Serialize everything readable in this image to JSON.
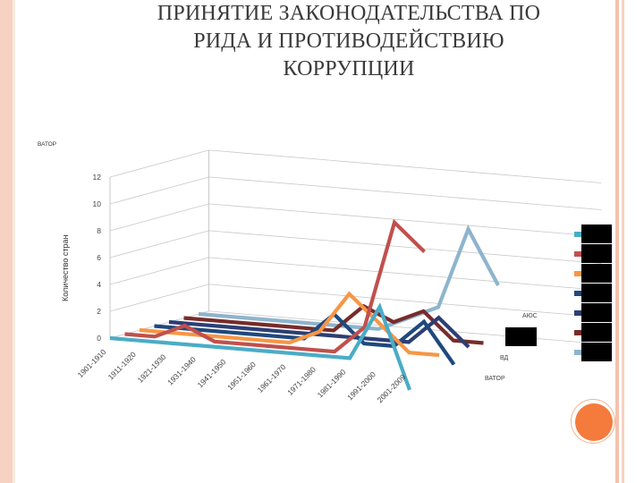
{
  "slide": {
    "title_lines": [
      "ПРИНЯТИЕ ЗАКОНОДАТЕЛЬСТВА ПО",
      "РИДА И ПРОТИВОДЕЙСТВИЮ",
      "КОРРУПЦИИ"
    ]
  },
  "chart_data": {
    "type": "line",
    "view": "3d",
    "categories": [
      "1901-1910",
      "1911-1920",
      "1921-1930",
      "1931-1940",
      "1941-1950",
      "1951-1960",
      "1961-1970",
      "1971-1980",
      "1981-1990",
      "1991-2000",
      "2001-2009"
    ],
    "ylabel": "Количество стран",
    "corner_label": "ВАТОР",
    "yticks": [
      "0",
      "2",
      "4",
      "6",
      "8",
      "10",
      "12"
    ],
    "ylim": [
      0,
      12
    ],
    "depth_labels": [
      "АЮС",
      "ВД",
      "ВАТОР"
    ],
    "legend": {
      "placement": "right",
      "names_obscured": true
    },
    "series": [
      {
        "color": "#4bacc6",
        "values": [
          0,
          0,
          0,
          0,
          0,
          0,
          0,
          0,
          0,
          4,
          -2
        ]
      },
      {
        "color": "#c0504d",
        "values": [
          0,
          0,
          1,
          0,
          0,
          0,
          0,
          0,
          2,
          10,
          8
        ]
      },
      {
        "color": "#f79646",
        "values": [
          0,
          0,
          0,
          0,
          0,
          0,
          1,
          4,
          2,
          0,
          0
        ]
      },
      {
        "color": "#1f497d",
        "values": [
          0,
          0,
          0,
          0,
          0,
          0,
          2,
          0,
          0,
          2,
          -1
        ]
      },
      {
        "color": "#2c3e74",
        "values": [
          0,
          0,
          0,
          0,
          0,
          0,
          0,
          0,
          0,
          2,
          0
        ]
      },
      {
        "color": "#772c2a",
        "values": [
          0,
          0,
          0,
          0,
          0,
          0,
          2,
          1,
          2,
          0,
          0
        ]
      },
      {
        "color": "#8eb4cd",
        "values": [
          0,
          0,
          0,
          0,
          0,
          0,
          0,
          1,
          2,
          8,
          4
        ]
      }
    ]
  }
}
